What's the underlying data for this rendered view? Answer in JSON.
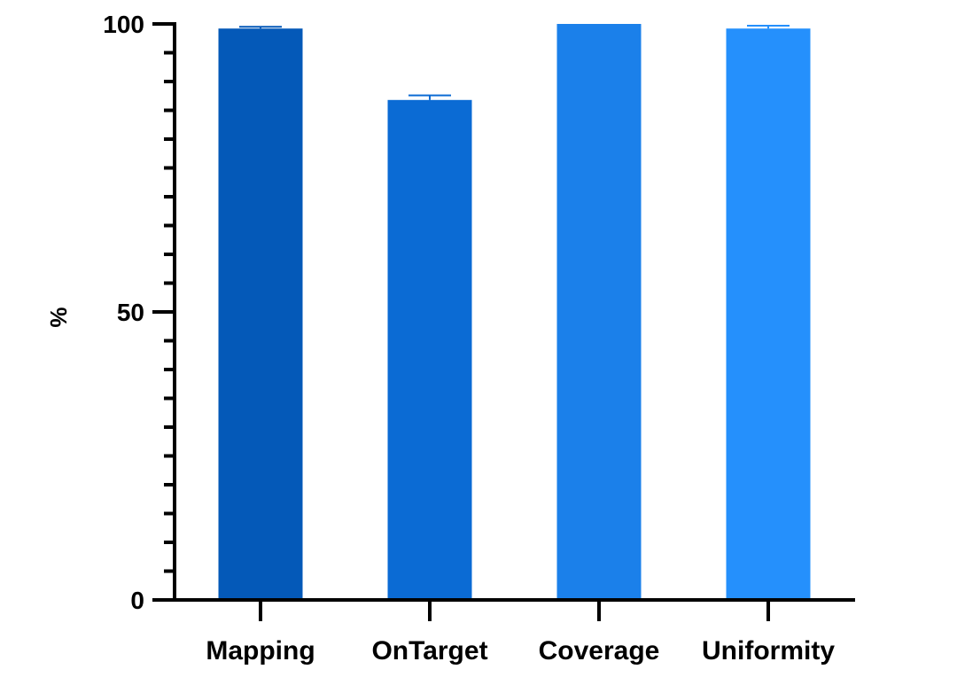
{
  "chart_data": {
    "type": "bar",
    "title": "",
    "xlabel": "",
    "ylabel": "%",
    "ylim": [
      0,
      100
    ],
    "yticks": [
      "0",
      "50",
      "100"
    ],
    "minor_tick_step": 5,
    "grid": false,
    "categories": [
      "Mapping",
      "OnTarget",
      "Coverage",
      "Uniformity"
    ],
    "values": [
      99.2,
      86.8,
      100,
      99.2
    ],
    "errors": [
      0.3,
      0.8,
      0.0,
      0.5
    ],
    "colors": [
      "#0459b8",
      "#0b6bd4",
      "#1b80ea",
      "#2590fc"
    ]
  }
}
